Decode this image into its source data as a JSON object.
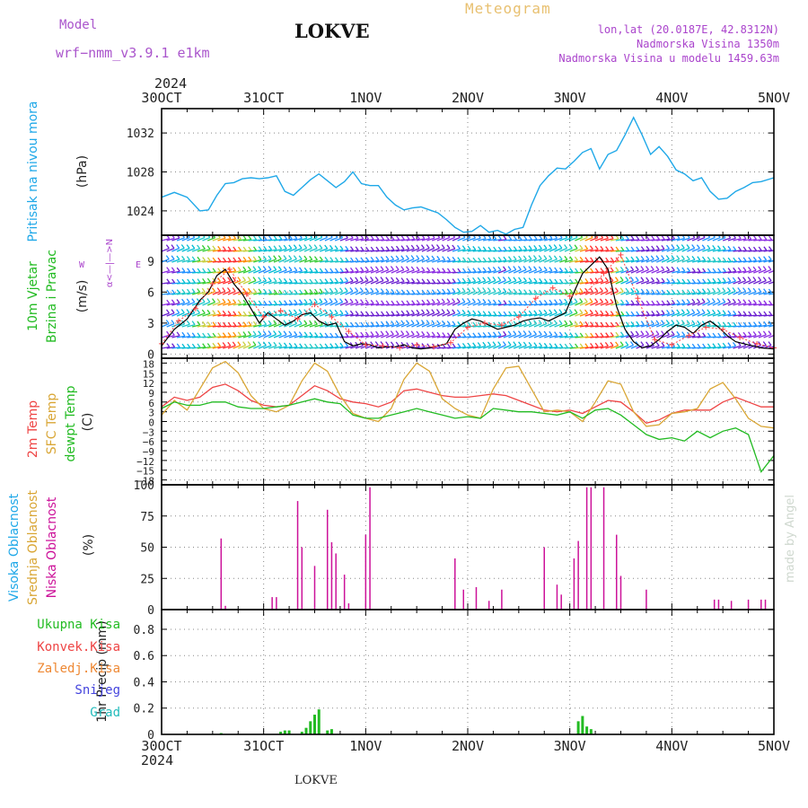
{
  "header": {
    "model_label": "Model",
    "model_value": "wrf−nmm_v3.9.1  e1km",
    "station": "LOKVE",
    "title": "Meteogram",
    "coords": "lon,lat (20.0187E, 42.8312N)",
    "elevation": "Nadmorska Visina 1350m",
    "model_elevation": "Nadmorska Visina u modelu 1459.63m",
    "year_top": "2024",
    "year_bottom": "2024",
    "footer_station": "LOKVE",
    "watermark": "made by Angel"
  },
  "time_axis": {
    "labels": [
      "30OCT",
      "31OCT",
      "1NOV",
      "2NOV",
      "3NOV",
      "4NOV",
      "5NOV"
    ],
    "hours": [
      0,
      24,
      48,
      72,
      96,
      120,
      144
    ]
  },
  "colors": {
    "pressure": "#1fa8e8",
    "wind_speed": "#000000",
    "gust": "#ff4444",
    "t2m": "#ee4444",
    "sfc": "#d9a635",
    "dewpt": "#22bb22",
    "low_cloud": "#cc1199",
    "precip": "#22bb22",
    "model_label": "#aa55cc",
    "coord_text": "#aa44cc"
  },
  "panels": {
    "pressure": {
      "title": "Pritisak na nivou mora",
      "unit": "(hPa)",
      "ticks": [
        1024,
        1028,
        1032
      ]
    },
    "wind": {
      "title1": "10m Vjetar",
      "title2": "Brzina i Pravac",
      "unit": "(m/s)",
      "compass_ns": "α<—|—>N",
      "compass_w": "W",
      "compass_e": "E",
      "ticks": [
        0,
        3,
        6,
        9
      ]
    },
    "temp": {
      "title_t2m": "2m Temp",
      "title_sfc": "SFC Temp",
      "title_dew": "dewpt Temp",
      "unit": "(C)",
      "ticks": [
        -18,
        -15,
        -12,
        -9,
        -6,
        -3,
        0,
        3,
        6,
        9,
        12,
        15,
        18
      ]
    },
    "cloud": {
      "title_high": "Visoka Oblacnost",
      "title_mid": "Srednja Oblacnost",
      "title_low": "Niska Oblacnost",
      "unit": "(%)",
      "ticks": [
        0,
        25,
        50,
        75,
        100
      ]
    },
    "precip": {
      "legend": [
        "Ukupna Kisa",
        "Konvek.Kisa",
        "Zaledj.Kisa",
        "Snijeg",
        "Grad"
      ],
      "legend_colors": [
        "#22bb22",
        "#ee4444",
        "#ee8833",
        "#4444dd",
        "#22bbbb"
      ],
      "unit": "1hr Precip (mm)",
      "ticks": [
        0,
        0.2,
        0.4,
        0.6,
        0.8
      ]
    }
  },
  "chart_data": [
    {
      "type": "line",
      "panel": "pressure",
      "ylabel": "(hPa)",
      "ylim": [
        1021.5,
        1034.5
      ],
      "x_unit": "hours from 30OCT 00UTC",
      "series": [
        {
          "name": "Pritisak na nivou mora",
          "x": [
            0,
            3,
            6,
            9,
            11,
            13,
            15,
            17,
            19,
            21,
            23,
            25,
            27,
            29,
            31,
            33,
            35,
            37,
            39,
            41,
            43,
            45,
            47,
            49,
            51,
            53,
            55,
            57,
            59,
            61,
            63,
            65,
            67,
            69,
            71,
            73,
            75,
            77,
            79,
            81,
            83,
            85,
            87,
            89,
            91,
            93,
            95,
            97,
            99,
            101,
            103,
            105,
            107,
            109,
            111,
            113,
            115,
            117,
            119,
            121,
            123,
            125,
            127,
            129,
            131,
            133,
            135,
            137,
            139,
            141,
            144
          ],
          "y": [
            1025.4,
            1025.9,
            1025.4,
            1024.0,
            1024.1,
            1025.6,
            1026.8,
            1026.9,
            1027.3,
            1027.4,
            1027.3,
            1027.4,
            1027.6,
            1026.0,
            1025.6,
            1026.4,
            1027.2,
            1027.8,
            1027.1,
            1026.4,
            1027.0,
            1028.0,
            1026.8,
            1026.6,
            1026.6,
            1025.4,
            1024.6,
            1024.1,
            1024.3,
            1024.4,
            1024.1,
            1023.8,
            1023.1,
            1022.3,
            1021.8,
            1021.9,
            1022.5,
            1021.8,
            1022.0,
            1021.6,
            1022.1,
            1022.3,
            1024.6,
            1026.6,
            1027.6,
            1028.4,
            1028.3,
            1029.1,
            1030.0,
            1030.4,
            1028.3,
            1029.8,
            1030.2,
            1031.8,
            1033.6,
            1031.8,
            1029.8,
            1030.6,
            1029.6,
            1028.2,
            1027.8,
            1027.1,
            1027.4,
            1026.0,
            1025.2,
            1025.3,
            1026.0,
            1026.4,
            1026.9,
            1027.0,
            1027.4
          ]
        }
      ]
    },
    {
      "type": "line",
      "panel": "wind",
      "ylabel": "(m/s)",
      "ylim": [
        -0.4,
        11.5
      ],
      "x_unit": "hours from 30OCT 00UTC",
      "series": [
        {
          "name": "wind speed",
          "x": [
            0,
            3,
            6,
            9,
            11,
            13,
            15,
            17,
            19,
            21,
            23,
            25,
            27,
            29,
            31,
            33,
            35,
            37,
            39,
            41,
            43,
            45,
            47,
            49,
            51,
            53,
            55,
            57,
            59,
            61,
            63,
            65,
            67,
            69,
            71,
            73,
            75,
            77,
            79,
            81,
            83,
            85,
            87,
            89,
            91,
            93,
            95,
            97,
            99,
            101,
            103,
            105,
            107,
            109,
            111,
            113,
            115,
            117,
            119,
            121,
            123,
            125,
            127,
            129,
            131,
            133,
            135,
            137,
            139,
            141,
            144
          ],
          "y": [
            0.8,
            2.4,
            3.4,
            5.2,
            6.0,
            7.6,
            8.2,
            6.8,
            5.8,
            4.4,
            3.0,
            4.0,
            3.4,
            2.8,
            3.2,
            3.8,
            4.0,
            3.2,
            2.8,
            3.0,
            1.2,
            0.8,
            1.0,
            0.9,
            0.6,
            0.7,
            0.7,
            0.9,
            0.6,
            0.5,
            0.6,
            0.8,
            1.0,
            2.4,
            3.0,
            3.4,
            3.2,
            2.8,
            2.4,
            2.6,
            2.8,
            3.2,
            3.4,
            3.5,
            3.2,
            3.6,
            4.0,
            6.0,
            7.8,
            8.6,
            9.4,
            8.2,
            4.6,
            2.4,
            1.2,
            0.6,
            0.8,
            1.4,
            2.2,
            2.8,
            2.6,
            2.0,
            2.8,
            3.2,
            2.6,
            1.8,
            1.2,
            1.0,
            0.8,
            0.6,
            0.5
          ]
        },
        {
          "name": "gust",
          "x": [
            0,
            4,
            8,
            12,
            16,
            20,
            24,
            28,
            32,
            36,
            40,
            44,
            48,
            52,
            56,
            60,
            64,
            68,
            72,
            76,
            80,
            84,
            88,
            92,
            96,
            100,
            104,
            108,
            112,
            116,
            120,
            124,
            128,
            132,
            136,
            140,
            144
          ],
          "y": [
            1.0,
            3.2,
            4.4,
            6.8,
            8.2,
            5.8,
            3.6,
            4.2,
            3.4,
            4.8,
            3.6,
            2.2,
            0.9,
            0.8,
            0.6,
            0.9,
            0.7,
            1.1,
            2.6,
            3.0,
            2.8,
            3.6,
            5.4,
            6.4,
            5.6,
            6.0,
            7.8,
            9.6,
            5.4,
            1.4,
            0.9,
            1.8,
            2.6,
            2.4,
            1.6,
            1.0,
            0.6
          ]
        }
      ]
    },
    {
      "type": "line",
      "panel": "temp",
      "ylabel": "(C)",
      "ylim": [
        -19.5,
        19.5
      ],
      "x_unit": "hours from 30OCT 00UTC",
      "series": [
        {
          "name": "2m Temp",
          "x": [
            0,
            3,
            6,
            9,
            12,
            15,
            18,
            21,
            24,
            27,
            30,
            33,
            36,
            39,
            42,
            45,
            48,
            51,
            54,
            57,
            60,
            63,
            66,
            69,
            72,
            75,
            78,
            81,
            84,
            87,
            90,
            93,
            96,
            99,
            102,
            105,
            108,
            111,
            114,
            117,
            120,
            123,
            126,
            129,
            132,
            135,
            138,
            141,
            144
          ],
          "y": [
            4.5,
            7.5,
            6.5,
            7.5,
            10.5,
            11.5,
            9.5,
            6.5,
            5.0,
            4.5,
            5.0,
            8.0,
            11.0,
            9.5,
            7.0,
            6.0,
            5.5,
            4.5,
            6.0,
            9.5,
            10.0,
            9.0,
            8.0,
            7.5,
            7.5,
            8.0,
            8.5,
            8.0,
            6.5,
            5.0,
            3.5,
            3.0,
            3.5,
            2.5,
            4.5,
            6.5,
            6.0,
            3.0,
            -0.5,
            0.5,
            2.5,
            3.5,
            3.5,
            3.5,
            6.0,
            7.5,
            6.0,
            4.5,
            4.5
          ]
        },
        {
          "name": "SFC Temp",
          "x": [
            0,
            3,
            6,
            9,
            12,
            15,
            18,
            21,
            24,
            27,
            30,
            33,
            36,
            39,
            42,
            45,
            48,
            51,
            54,
            57,
            60,
            63,
            66,
            69,
            72,
            75,
            78,
            81,
            84,
            87,
            90,
            93,
            96,
            99,
            102,
            105,
            108,
            111,
            114,
            117,
            120,
            123,
            126,
            129,
            132,
            135,
            138,
            141,
            144
          ],
          "y": [
            2.0,
            6.5,
            3.5,
            10.0,
            16.5,
            18.5,
            15.0,
            8.0,
            4.0,
            3.0,
            5.0,
            12.5,
            18.0,
            15.5,
            8.0,
            2.5,
            1.0,
            0.0,
            4.0,
            13.0,
            18.0,
            15.5,
            7.0,
            4.0,
            2.0,
            1.0,
            10.0,
            16.5,
            17.0,
            10.0,
            3.0,
            3.5,
            3.0,
            0.0,
            6.0,
            12.5,
            11.5,
            3.0,
            -1.5,
            -1.0,
            2.5,
            3.0,
            4.0,
            10.0,
            12.0,
            7.0,
            1.0,
            -1.5,
            -2.0
          ]
        },
        {
          "name": "dewpt Temp",
          "x": [
            0,
            3,
            6,
            9,
            12,
            15,
            18,
            21,
            24,
            27,
            30,
            33,
            36,
            39,
            42,
            45,
            48,
            51,
            54,
            57,
            60,
            63,
            66,
            69,
            72,
            75,
            78,
            81,
            84,
            87,
            90,
            93,
            96,
            99,
            102,
            105,
            108,
            111,
            114,
            117,
            120,
            123,
            126,
            129,
            132,
            135,
            138,
            141,
            144
          ],
          "y": [
            4.0,
            6.0,
            5.0,
            5.0,
            6.0,
            6.0,
            4.5,
            4.0,
            4.0,
            4.5,
            5.0,
            6.0,
            7.0,
            6.0,
            5.5,
            2.0,
            1.0,
            1.0,
            2.0,
            3.0,
            4.0,
            3.0,
            2.0,
            1.0,
            1.5,
            1.0,
            4.0,
            3.5,
            3.0,
            3.0,
            2.5,
            2.0,
            3.0,
            1.0,
            3.5,
            4.0,
            2.0,
            -1.0,
            -4.0,
            -5.5,
            -5.0,
            -6.0,
            -3.0,
            -5.0,
            -3.0,
            -2.0,
            -4.0,
            -15.5,
            -10.5
          ]
        }
      ]
    },
    {
      "type": "bar",
      "panel": "cloud",
      "ylabel": "(%)",
      "ylim": [
        0,
        100
      ],
      "x_unit": "hours from 30OCT 00UTC",
      "series": [
        {
          "name": "Niska Oblacnost",
          "x": [
            14,
            15,
            26,
            27,
            32,
            33,
            36,
            39,
            40,
            41,
            43,
            44,
            48,
            49,
            69,
            71,
            74,
            77,
            80,
            90,
            93,
            94,
            97,
            98,
            100,
            101,
            104,
            107,
            108,
            114,
            130,
            131,
            134,
            138,
            141,
            142
          ],
          "y": [
            57,
            3,
            10,
            10,
            87,
            50,
            35,
            80,
            54,
            45,
            28,
            5,
            60,
            98,
            41,
            16,
            18,
            7,
            16,
            50,
            20,
            12,
            41,
            55,
            98,
            98,
            98,
            60,
            27,
            16,
            8,
            8,
            7,
            8,
            8,
            8
          ]
        }
      ]
    },
    {
      "type": "bar",
      "panel": "precip",
      "ylabel": "1hr Precip (mm)",
      "ylim": [
        0,
        0.95
      ],
      "x_unit": "hours from 30OCT 00UTC",
      "series": [
        {
          "name": "Ukupna Kisa",
          "x": [
            14,
            28,
            29,
            30,
            33,
            34,
            35,
            36,
            37,
            39,
            40,
            98,
            99,
            100,
            101
          ],
          "y": [
            0.01,
            0.02,
            0.03,
            0.03,
            0.02,
            0.05,
            0.1,
            0.15,
            0.19,
            0.03,
            0.04,
            0.1,
            0.14,
            0.06,
            0.04
          ]
        }
      ]
    }
  ]
}
